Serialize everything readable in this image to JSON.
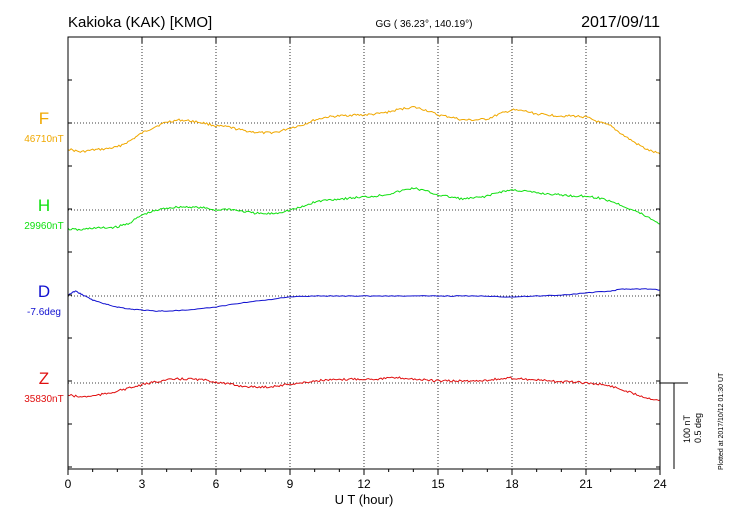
{
  "header": {
    "station": "Kakioka (KAK)  [KMO]",
    "coordinates": "GG ( 36.23°, 140.19°)",
    "date": "2017/09/11"
  },
  "chart_data": {
    "type": "line",
    "xlabel": "U T (hour)",
    "xlim": [
      0,
      24
    ],
    "xticks": [
      "0",
      "3",
      "6",
      "9",
      "12",
      "15",
      "18",
      "21",
      "24"
    ],
    "grid": true,
    "scale_bar": {
      "line1": "100 nT",
      "line2": "0.5 deg"
    },
    "plotted_note": "Plotted at 2017/10/12 01:30 UT",
    "series": [
      {
        "name": "F",
        "baseline_label": "46710nT",
        "unit": "nT",
        "color": "#f0a800",
        "x": [
          0,
          0.5,
          1,
          1.5,
          2,
          2.5,
          3,
          3.5,
          4,
          4.5,
          5,
          5.5,
          6,
          6.5,
          7,
          7.5,
          8,
          8.5,
          9,
          9.5,
          10,
          10.5,
          11,
          11.5,
          12,
          12.5,
          13,
          13.5,
          14,
          14.5,
          15,
          15.5,
          16,
          16.5,
          17,
          17.5,
          18,
          18.5,
          19,
          19.5,
          20,
          20.5,
          21,
          21.5,
          22,
          22.5,
          23,
          23.5,
          24
        ],
        "y": [
          -26,
          -29,
          -27,
          -26,
          -24,
          -18,
          -10,
          -4,
          1,
          3,
          2,
          0,
          -3,
          -4,
          -7,
          -9,
          -10,
          -9,
          -5,
          -2,
          3,
          6,
          7,
          8,
          8,
          9,
          11,
          14,
          16,
          13,
          8,
          6,
          3,
          3,
          4,
          9,
          13,
          12,
          9,
          8,
          7,
          7,
          6,
          1,
          -3,
          -12,
          -20,
          -27,
          -31
        ]
      },
      {
        "name": "H",
        "baseline_label": "29960nT",
        "unit": "nT",
        "color": "#10e010",
        "x": [
          0,
          0.5,
          1,
          1.5,
          2,
          2.5,
          3,
          3.5,
          4,
          4.5,
          5,
          5.5,
          6,
          6.5,
          7,
          7.5,
          8,
          8.5,
          9,
          9.5,
          10,
          10.5,
          11,
          11.5,
          12,
          12.5,
          13,
          13.5,
          14,
          14.5,
          15,
          15.5,
          16,
          16.5,
          17,
          17.5,
          18,
          18.5,
          19,
          19.5,
          20,
          20.5,
          21,
          21.5,
          22,
          22.5,
          23,
          23.5,
          24
        ],
        "y": [
          -19,
          -20,
          -18,
          -18,
          -17,
          -13,
          -5,
          -1,
          2,
          3,
          3,
          2,
          0,
          1,
          -1,
          -3,
          -4,
          -3,
          0,
          3,
          8,
          10,
          11,
          12,
          13,
          14,
          16,
          19,
          22,
          19,
          15,
          13,
          11,
          12,
          14,
          18,
          20,
          19,
          17,
          16,
          15,
          14,
          14,
          12,
          9,
          4,
          -1,
          -7,
          -14
        ]
      },
      {
        "name": "D",
        "baseline_label": "-7.6deg",
        "unit": "deg",
        "color": "#1010d0",
        "x": [
          0,
          0.3,
          0.6,
          1,
          1.5,
          2,
          2.5,
          3,
          3.5,
          4,
          5,
          6,
          7,
          8,
          9,
          10,
          11,
          12,
          13,
          14,
          15,
          16,
          17,
          18,
          19,
          20,
          21,
          22,
          22.5,
          23,
          23.5,
          24
        ],
        "y": [
          1,
          5,
          1,
          -4,
          -8,
          -11,
          -13,
          -14,
          -15,
          -15,
          -14,
          -11,
          -7,
          -4,
          -1,
          0,
          0,
          0,
          0,
          0,
          0,
          0,
          0,
          -1,
          0,
          1,
          3,
          5,
          7,
          7,
          7,
          6
        ]
      },
      {
        "name": "Z",
        "baseline_label": "35830nT",
        "unit": "nT",
        "color": "#e01010",
        "x": [
          0,
          0.5,
          1,
          1.5,
          2,
          2.5,
          3,
          3.5,
          4,
          4.5,
          5,
          5.5,
          6,
          6.5,
          7,
          7.5,
          8,
          8.5,
          9,
          9.5,
          10,
          10.5,
          11,
          11.5,
          12,
          12.5,
          13,
          13.5,
          14,
          14.5,
          15,
          15.5,
          16,
          16.5,
          17,
          17.5,
          18,
          18.5,
          19,
          19.5,
          20,
          20.5,
          21,
          21.5,
          22,
          22.5,
          23,
          23.5,
          24
        ],
        "y": [
          -12,
          -14,
          -13,
          -11,
          -8,
          -5,
          -2,
          1,
          3,
          4,
          4,
          3,
          1,
          -1,
          -3,
          -4,
          -4,
          -3,
          -1,
          0,
          2,
          3,
          3,
          4,
          4,
          4,
          5,
          5,
          4,
          3,
          2,
          2,
          2,
          2,
          3,
          4,
          5,
          4,
          3,
          2,
          1,
          1,
          0,
          -1,
          -3,
          -7,
          -11,
          -15,
          -17
        ]
      }
    ]
  }
}
